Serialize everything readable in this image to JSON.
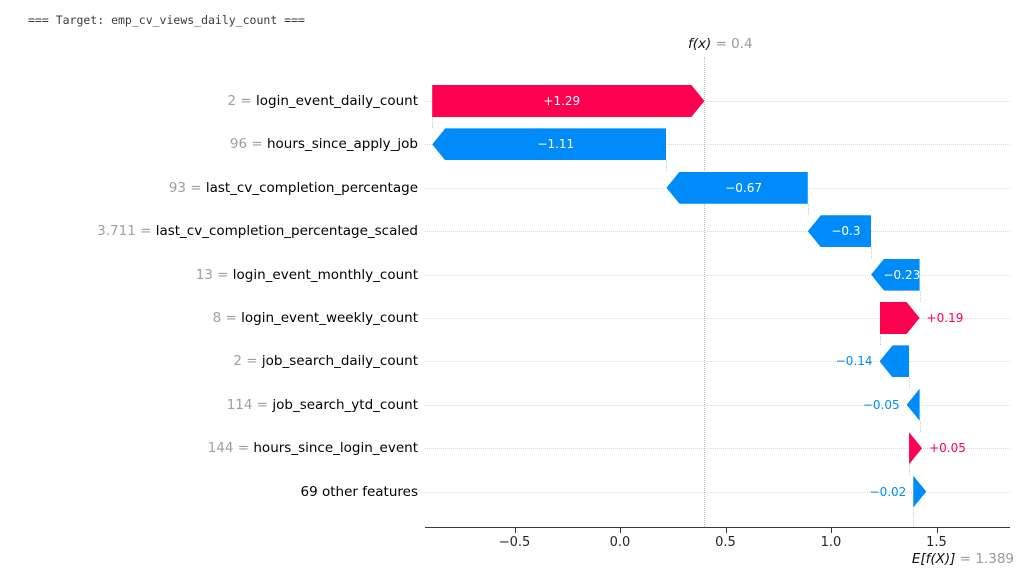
{
  "title": "=== Target: emp_cv_views_daily_count ===",
  "colors": {
    "positive": "#ff0051",
    "negative": "#008bfb",
    "row_dotted": "#dcdcdc",
    "connector": "#cccccc",
    "axis": "#3a3a3a",
    "prefix_gray": "#9f9f9f",
    "name_black": "#000000"
  },
  "chart_data": {
    "type": "bar",
    "variant": "shap-waterfall",
    "title": "=== Target: emp_cv_views_daily_count ===",
    "fx_label": "f(x)",
    "fx_value_text": " = 0.4",
    "fx_value": 0.4,
    "base_label": "E[f(X)]",
    "base_value_text": " = 1.389",
    "base_value": 1.389,
    "xlim": [
      -0.92,
      1.85
    ],
    "x_ticks": [
      {
        "v": -0.5,
        "label": "−0.5"
      },
      {
        "v": 0.0,
        "label": "0.0"
      },
      {
        "v": 0.5,
        "label": "0.5"
      },
      {
        "v": 1.0,
        "label": "1.0"
      },
      {
        "v": 1.5,
        "label": "1.5"
      }
    ],
    "features": [
      {
        "value": "2",
        "name": "login_event_daily_count",
        "shap": 1.29,
        "label": "+1.29"
      },
      {
        "value": "96",
        "name": "hours_since_apply_job",
        "shap": -1.11,
        "label": "−1.11"
      },
      {
        "value": "93",
        "name": "last_cv_completion_percentage",
        "shap": -0.67,
        "label": "−0.67"
      },
      {
        "value": "3.711",
        "name": "last_cv_completion_percentage_scaled",
        "shap": -0.3,
        "label": "−0.3"
      },
      {
        "value": "13",
        "name": "login_event_monthly_count",
        "shap": -0.23,
        "label": "−0.23"
      },
      {
        "value": "8",
        "name": "login_event_weekly_count",
        "shap": 0.19,
        "label": "+0.19"
      },
      {
        "value": "2",
        "name": "job_search_daily_count",
        "shap": -0.14,
        "label": "−0.14"
      },
      {
        "value": "114",
        "name": "job_search_ytd_count",
        "shap": -0.05,
        "label": "−0.05"
      },
      {
        "value": "144",
        "name": "hours_since_login_event",
        "shap": 0.05,
        "label": "+0.05"
      },
      {
        "value": "",
        "name": "69 other features",
        "shap": -0.02,
        "label": "−0.02"
      }
    ]
  }
}
